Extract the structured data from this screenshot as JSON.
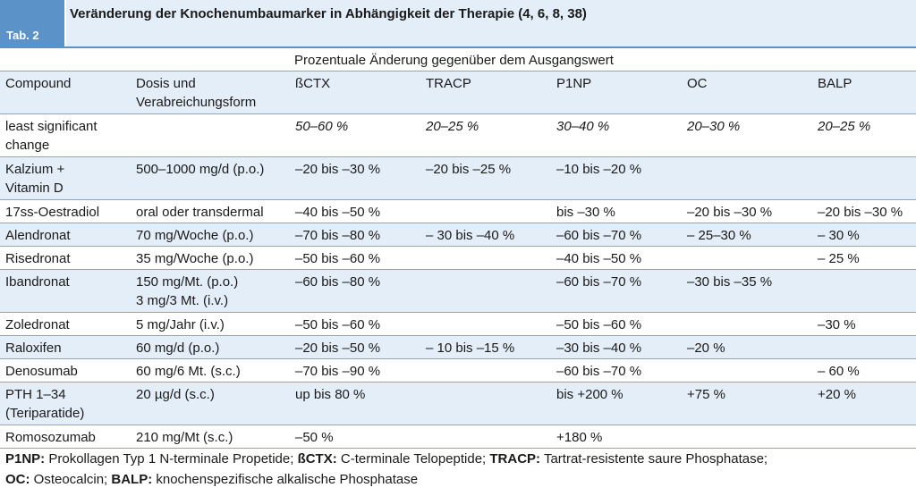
{
  "header": {
    "tab_label": "Tab. 2",
    "title": "Veränderung der Knochenumbaumarker in Abhängigkeit der Therapie (4, 6, 8, 38)"
  },
  "table": {
    "span_header": "Prozentuale Änderung gegenüber dem Ausgangswert",
    "columns": [
      "Compound",
      "Dosis und\nVerabreichungsform",
      "ßCTX",
      "TRACP",
      "P1NP",
      "OC",
      "BALP"
    ],
    "lsc_row": [
      "least significant\nchange",
      "",
      "50–60 %",
      "20–25 %",
      "30–40 %",
      "20–30 %",
      "20–25 %"
    ],
    "rows": [
      [
        "Kalzium +\nVitamin D",
        "500–1000 mg/d (p.o.)",
        "–20 bis –30 %",
        "–20 bis –25 %",
        "–10 bis –20 %",
        "",
        ""
      ],
      [
        "17ss-Oestradiol",
        "oral oder transdermal",
        "–40 bis –50 %",
        "",
        "bis –30 %",
        "–20 bis –30 %",
        "–20 bis –30 %"
      ],
      [
        "Alendronat",
        "70 mg/Woche (p.o.)",
        "–70 bis –80 %",
        "– 30 bis –40 %",
        "–60 bis –70 %",
        "– 25–30 %",
        "– 30 %"
      ],
      [
        "Risedronat",
        "35 mg/Woche (p.o.)",
        "–50 bis –60 %",
        "",
        "–40 bis –50 %",
        "",
        "– 25 %"
      ],
      [
        "Ibandronat",
        "150 mg/Mt. (p.o.)\n3 mg/3 Mt. (i.v.)",
        "–60 bis –80 %",
        "",
        "–60 bis –70 %",
        "–30 bis –35 %",
        ""
      ],
      [
        "Zoledronat",
        "5 mg/Jahr (i.v.)",
        "–50 bis –60 %",
        "",
        "–50 bis –60 %",
        "",
        "–30 %"
      ],
      [
        "Raloxifen",
        "60 mg/d (p.o.)",
        "–20 bis –50 %",
        "– 10 bis –15 %",
        "–30 bis –40 %",
        "–20 %",
        ""
      ],
      [
        "Denosumab",
        "60 mg/6 Mt. (s.c.)",
        "–70 bis –90 %",
        "",
        "–60 bis –70 %",
        "",
        "– 60 %"
      ],
      [
        "PTH 1–34\n(Teriparatide)",
        "20 µg/d (s.c.)",
        "up bis 80 %",
        "",
        "bis +200 %",
        "+75 %",
        "+20 %"
      ],
      [
        "Romosozumab",
        "210 mg/Mt (s.c.)",
        "–50 %",
        "",
        "+180 %",
        "",
        ""
      ]
    ]
  },
  "footnote": {
    "line1": [
      {
        "key": "P1NP:",
        "text": " Prokollagen Typ 1 N-terminale Propetide; "
      },
      {
        "key": "ßCTX:",
        "text": " C-terminale Telopeptide; "
      },
      {
        "key": "TRACP:",
        "text": " Tartrat-resistente saure Phosphatase;"
      }
    ],
    "line2": [
      {
        "key": "OC:",
        "text": " Osteocalcin; "
      },
      {
        "key": "BALP:",
        "text": " knochenspezifische alkalische Phosphatase"
      }
    ]
  },
  "colors": {
    "accent": "#5b93c9",
    "row_tint": "#e4eef8",
    "rule": "#7fa8d3"
  }
}
